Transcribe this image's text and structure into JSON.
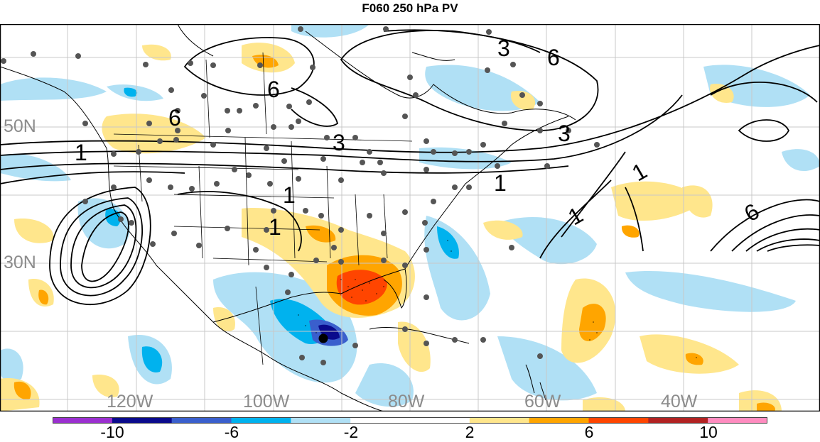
{
  "title": "F060 250 hPa PV",
  "lat_labels": [
    "50N",
    "30N"
  ],
  "lon_labels": [
    "120W",
    "100W",
    "80W",
    "60W",
    "40W"
  ],
  "contour_labels": [
    "1",
    "1",
    "1",
    "1",
    "1",
    "1",
    "3",
    "3",
    "3",
    "6",
    "6",
    "6",
    "6"
  ],
  "colorbar": {
    "labels": [
      "-10",
      "-6",
      "-2",
      "2",
      "6",
      "10"
    ],
    "colors": [
      "#9b30d0",
      "#0a0a8c",
      "#3a5fcd",
      "#00b2ee",
      "#b0e0f5",
      "#ffffff",
      "#ffffff",
      "#ffe68c",
      "#ffa500",
      "#ff4500",
      "#b22222",
      "#ff8cc0"
    ]
  },
  "colors": {
    "positive_light": "#ffe68c",
    "positive_mid": "#ffa500",
    "positive_strong": "#ff4500",
    "negative_light": "#b0e0f5",
    "negative_mid": "#00b2ee",
    "negative_strong": "#3a5fcd",
    "negative_deep": "#0a0a8c"
  }
}
